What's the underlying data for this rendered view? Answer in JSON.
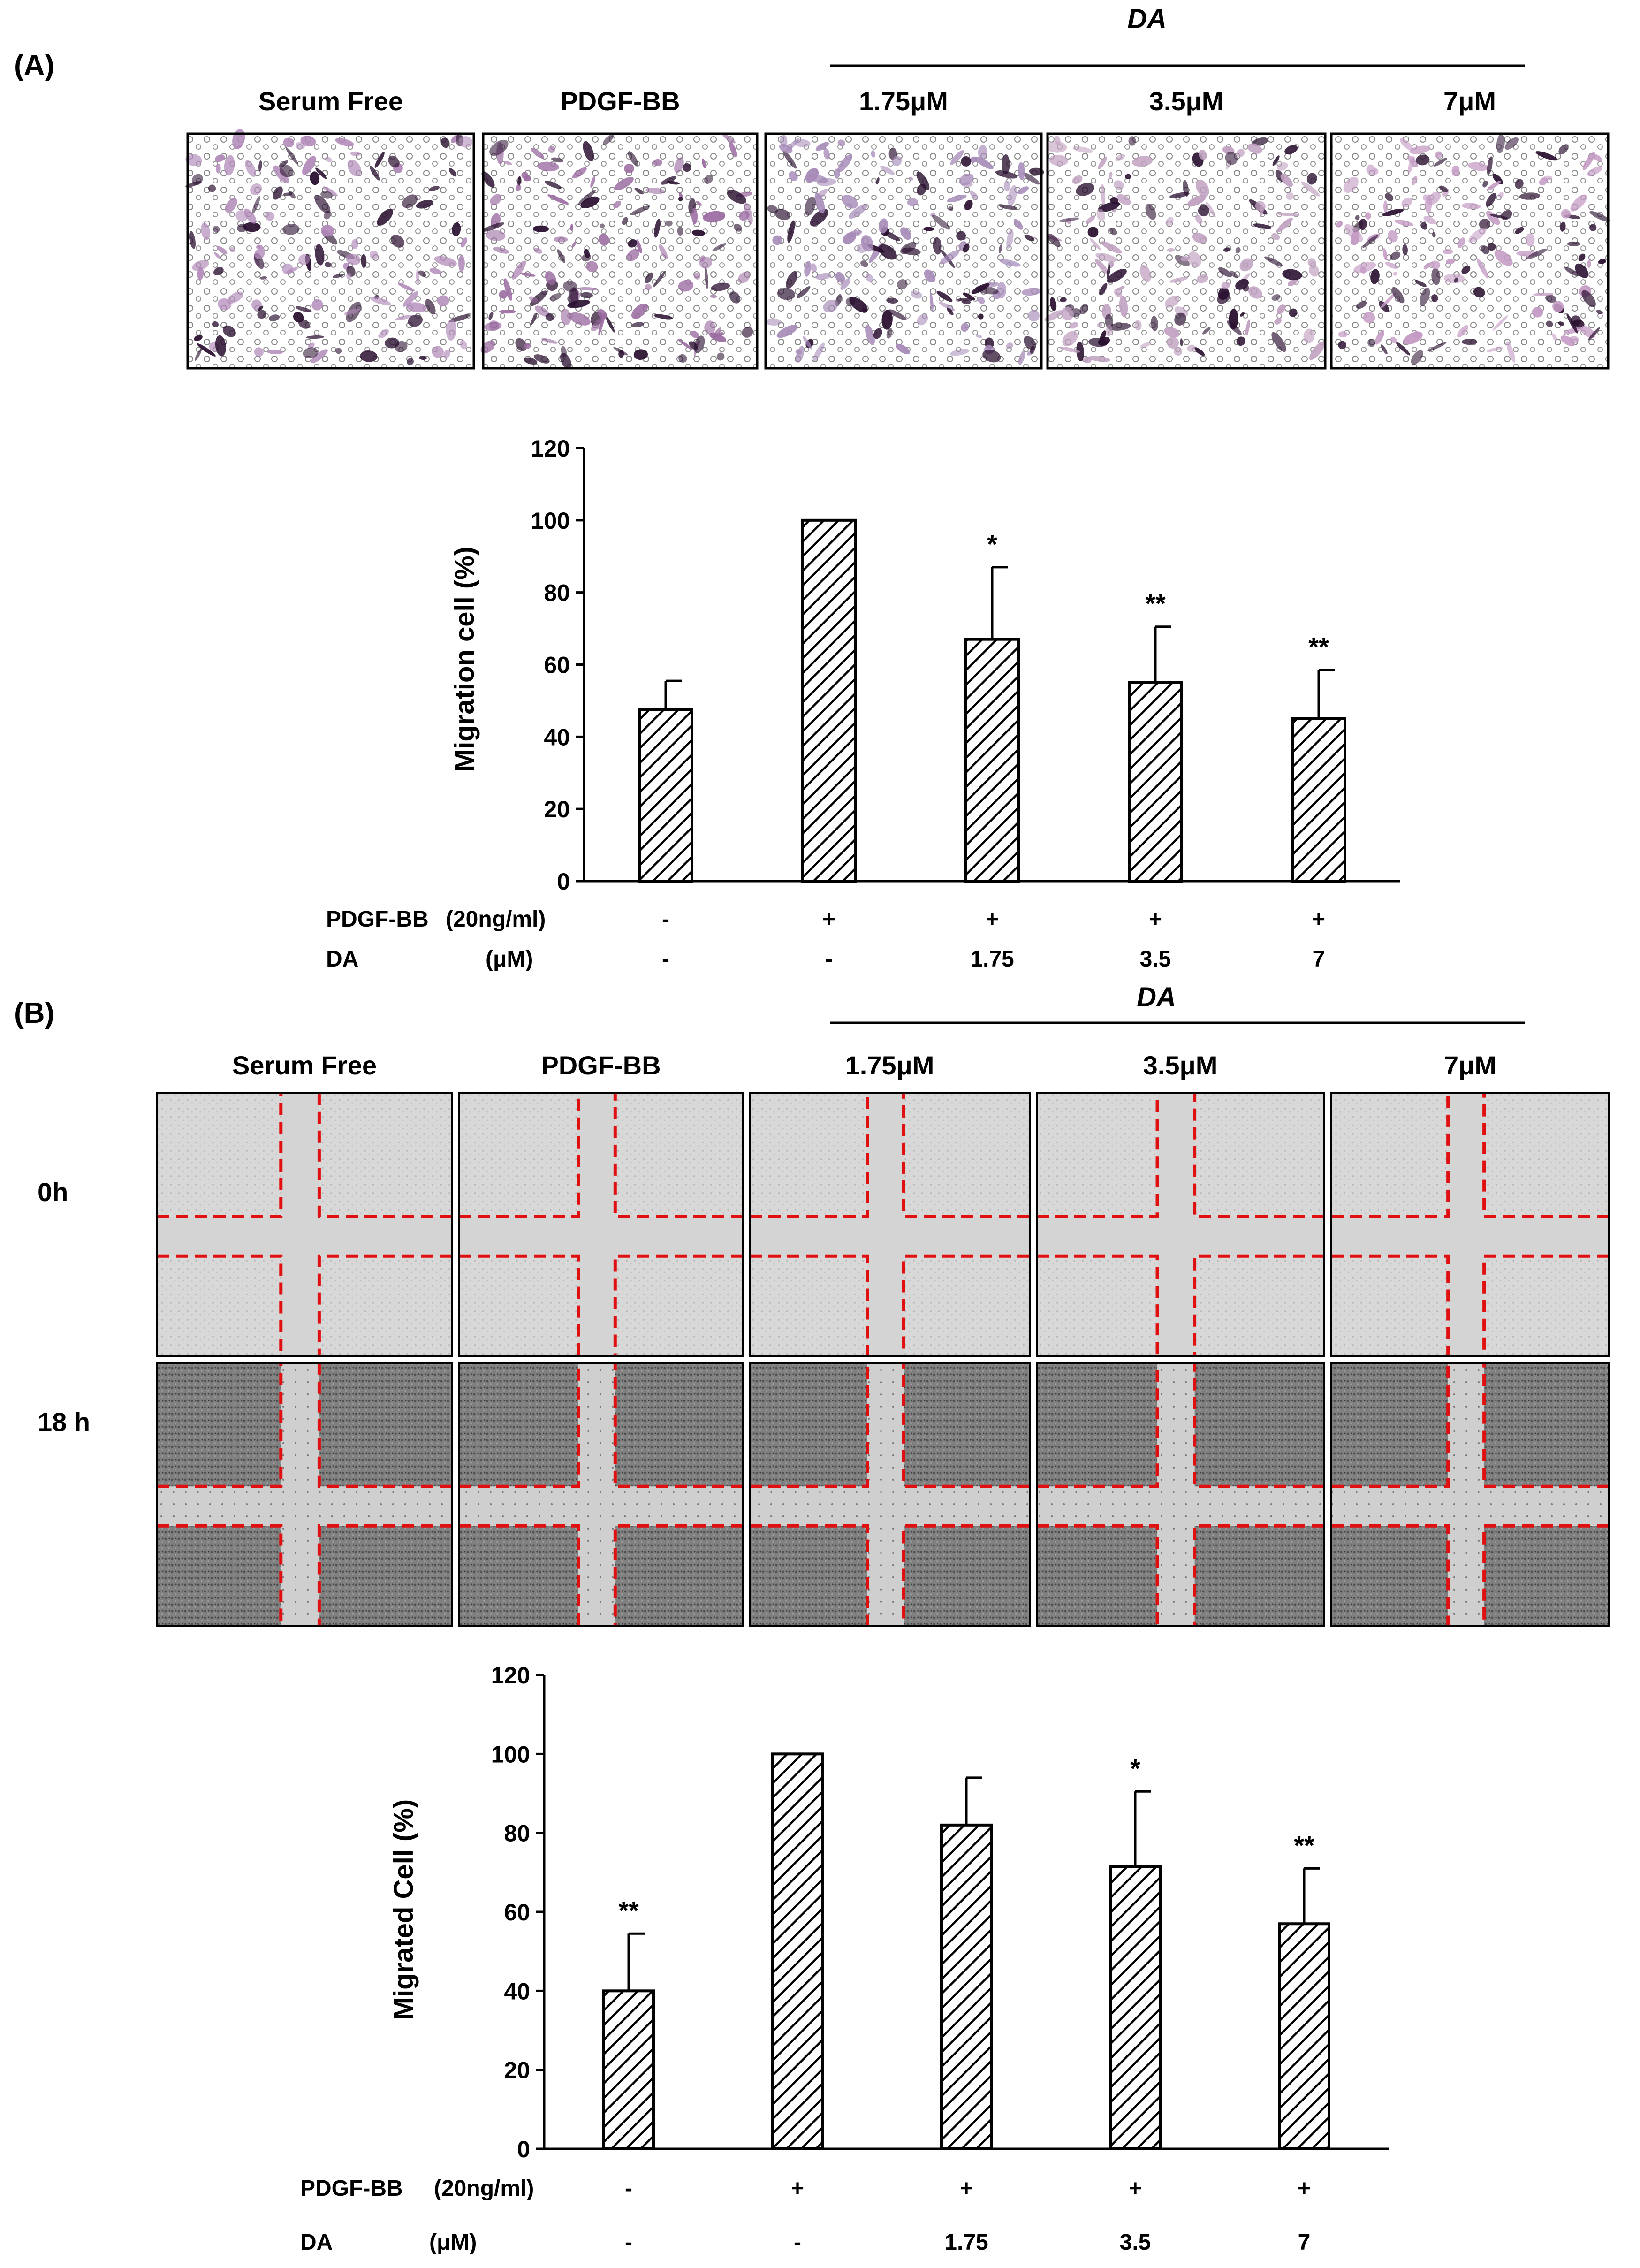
{
  "panels": {
    "A": {
      "label": "(A)",
      "group_label": "DA",
      "column_labels": [
        "Serum Free",
        "PDGF-BB",
        "1.75μM",
        "3.5μM",
        "7μM"
      ],
      "image_tint": [
        "#b088b8",
        "#9a6aa0",
        "#a68ab8",
        "#c0a0c0",
        "#c49ac4"
      ],
      "stain_color": "#2a1030"
    },
    "B": {
      "label": "(B)",
      "group_label": "DA",
      "column_labels": [
        "Serum Free",
        "PDGF-BB",
        "1.75μM",
        "3.5μM",
        "7μM"
      ],
      "row_labels": [
        "0h",
        "18 h"
      ],
      "scratch_line_color": "#e01010"
    }
  },
  "chart_data": [
    {
      "type": "bar",
      "categories": [
        "Serum Free",
        "PDGF-BB",
        "1.75μM",
        "3.5μM",
        "7μM"
      ],
      "values": [
        47.5,
        100,
        67,
        55,
        45
      ],
      "errors": [
        8,
        0,
        20,
        15.5,
        13.5
      ],
      "significance": [
        "",
        "",
        "*",
        "**",
        "**"
      ],
      "ylabel": "Migration cell (%)",
      "ylim": [
        0,
        120
      ],
      "yticks": [
        0,
        20,
        40,
        60,
        80,
        100,
        120
      ],
      "treatment_rows": [
        {
          "name": "PDGF-BB",
          "unit": "(20ng/ml)",
          "values": [
            "-",
            "+",
            "+",
            "+",
            "+"
          ]
        },
        {
          "name": "DA",
          "unit": "(μM)",
          "values": [
            "-",
            "-",
            "1.75",
            "3.5",
            "7"
          ]
        }
      ]
    },
    {
      "type": "bar",
      "categories": [
        "Serum Free",
        "PDGF-BB",
        "1.75μM",
        "3.5μM",
        "7μM"
      ],
      "values": [
        40,
        100,
        82,
        71.5,
        57
      ],
      "errors": [
        14.5,
        0,
        12,
        19,
        14
      ],
      "significance": [
        "**",
        "",
        "",
        "*",
        "**"
      ],
      "ylabel": "Migrated Cell (%)",
      "ylim": [
        0,
        120
      ],
      "yticks": [
        0,
        20,
        40,
        60,
        80,
        100,
        120
      ],
      "treatment_rows": [
        {
          "name": "PDGF-BB",
          "unit": "(20ng/ml)",
          "values": [
            "-",
            "+",
            "+",
            "+",
            "+"
          ]
        },
        {
          "name": "DA",
          "unit": "(μM)",
          "values": [
            "-",
            "-",
            "1.75",
            "3.5",
            "7"
          ]
        }
      ]
    }
  ]
}
